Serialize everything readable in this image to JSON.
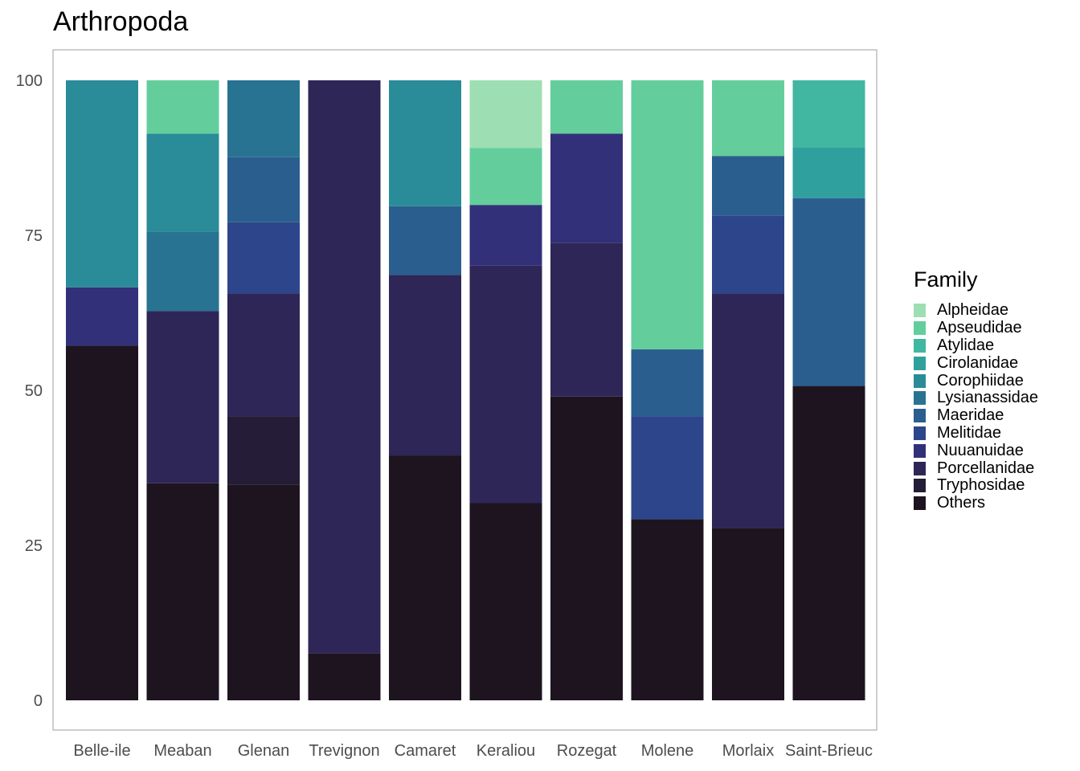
{
  "chart_data": {
    "type": "bar",
    "stacked": true,
    "title": "Arthropoda",
    "xlabel": "",
    "ylabel": "",
    "ylim": [
      0,
      100
    ],
    "yticks": [
      0,
      25,
      50,
      75,
      100
    ],
    "grid": false,
    "legend_position": "right",
    "legend_title": "Family",
    "categories": [
      "Belle-ile",
      "Meaban",
      "Glenan",
      "Trevignon",
      "Camaret",
      "Keraliou",
      "Rozegat",
      "Molene",
      "Morlaix",
      "Saint-Brieuc"
    ],
    "series": [
      {
        "name": "Others",
        "color": "#1d1420",
        "values": [
          57.2,
          35.0,
          34.8,
          7.6,
          39.5,
          31.8,
          49.0,
          29.2,
          27.8,
          50.7
        ]
      },
      {
        "name": "Tryphosidae",
        "color": "#251c37",
        "values": [
          0,
          0,
          11.0,
          0,
          0,
          0,
          0,
          0,
          0,
          0
        ]
      },
      {
        "name": "Porcellanidae",
        "color": "#2e2657",
        "values": [
          0,
          27.8,
          19.8,
          92.4,
          29.1,
          38.3,
          24.8,
          0,
          37.8,
          0
        ]
      },
      {
        "name": "Nuuanuidae",
        "color": "#33307a",
        "values": [
          9.4,
          0,
          0,
          0,
          0,
          9.8,
          17.6,
          0,
          0,
          0
        ]
      },
      {
        "name": "Melitidae",
        "color": "#2d458a",
        "values": [
          0,
          0,
          11.5,
          0,
          0,
          0,
          0,
          16.6,
          12.6,
          0
        ]
      },
      {
        "name": "Maeridae",
        "color": "#2a5e8e",
        "values": [
          0,
          0,
          10.5,
          0,
          11.1,
          0,
          0,
          10.8,
          9.6,
          30.3
        ]
      },
      {
        "name": "Lysianassidae",
        "color": "#287392",
        "values": [
          0,
          12.8,
          12.4,
          0,
          0,
          0,
          0,
          0,
          0,
          0
        ]
      },
      {
        "name": "Corophiidae",
        "color": "#2a8b99",
        "values": [
          33.4,
          15.8,
          0,
          0,
          20.3,
          0,
          0,
          0,
          0,
          0
        ]
      },
      {
        "name": "Cirolanidae",
        "color": "#30a09e",
        "values": [
          0,
          0,
          0,
          0,
          0,
          0,
          0,
          0,
          0,
          8.2
        ]
      },
      {
        "name": "Atylidae",
        "color": "#41b6a0",
        "values": [
          0,
          0,
          0,
          0,
          0,
          0,
          0,
          0,
          0,
          10.8
        ]
      },
      {
        "name": "Apseudidae",
        "color": "#63ce9c",
        "values": [
          0,
          8.6,
          0,
          0,
          0,
          9.2,
          8.6,
          43.4,
          12.2,
          0
        ]
      },
      {
        "name": "Alpheidae",
        "color": "#9ddfb2",
        "values": [
          0,
          0,
          0,
          0,
          0,
          10.9,
          0,
          0,
          0,
          0
        ]
      }
    ],
    "legend_order": [
      "Alpheidae",
      "Apseudidae",
      "Atylidae",
      "Cirolanidae",
      "Corophiidae",
      "Lysianassidae",
      "Maeridae",
      "Melitidae",
      "Nuuanuidae",
      "Porcellanidae",
      "Tryphosidae",
      "Others"
    ]
  }
}
